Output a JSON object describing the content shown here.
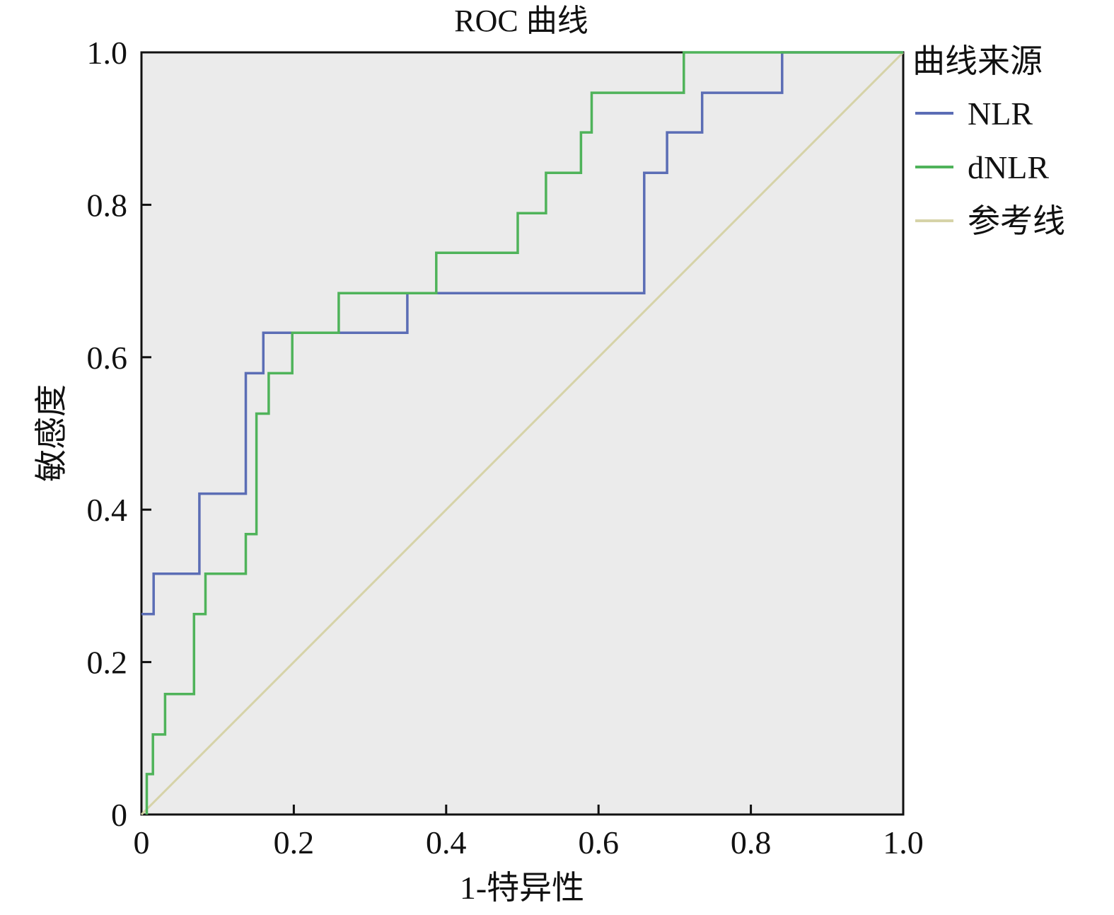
{
  "chart_data": {
    "type": "line",
    "title": "ROC 曲线",
    "xlabel": "1-特异性",
    "ylabel": "敏感度",
    "xlim": [
      0,
      1
    ],
    "ylim": [
      0,
      1
    ],
    "x_ticks": [
      "0",
      "0.2",
      "0.4",
      "0.6",
      "0.8",
      "1.0"
    ],
    "y_ticks": [
      "0",
      "0.2",
      "0.4",
      "0.6",
      "0.8",
      "1.0"
    ],
    "grid": false,
    "legend": {
      "title": "曲线来源",
      "placement": "right"
    },
    "series": [
      {
        "name": "NLR",
        "color": "#5b6db5",
        "step": true,
        "points": [
          [
            0,
            0.263
          ],
          [
            0.016,
            0.263
          ],
          [
            0.016,
            0.316
          ],
          [
            0.076,
            0.316
          ],
          [
            0.076,
            0.421
          ],
          [
            0.137,
            0.421
          ],
          [
            0.137,
            0.579
          ],
          [
            0.16,
            0.579
          ],
          [
            0.16,
            0.632
          ],
          [
            0.349,
            0.632
          ],
          [
            0.349,
            0.684
          ],
          [
            0.66,
            0.684
          ],
          [
            0.66,
            0.842
          ],
          [
            0.69,
            0.842
          ],
          [
            0.69,
            0.895
          ],
          [
            0.736,
            0.895
          ],
          [
            0.736,
            0.947
          ],
          [
            0.841,
            0.947
          ],
          [
            0.841,
            1.0
          ],
          [
            1.0,
            1.0
          ]
        ]
      },
      {
        "name": "dNLR",
        "color": "#4fb35a",
        "step": true,
        "points": [
          [
            0.007,
            0
          ],
          [
            0.007,
            0.053
          ],
          [
            0.015,
            0.053
          ],
          [
            0.015,
            0.105
          ],
          [
            0.031,
            0.105
          ],
          [
            0.031,
            0.158
          ],
          [
            0.069,
            0.158
          ],
          [
            0.069,
            0.263
          ],
          [
            0.084,
            0.263
          ],
          [
            0.084,
            0.316
          ],
          [
            0.137,
            0.316
          ],
          [
            0.137,
            0.368
          ],
          [
            0.151,
            0.368
          ],
          [
            0.151,
            0.526
          ],
          [
            0.167,
            0.526
          ],
          [
            0.167,
            0.579
          ],
          [
            0.198,
            0.579
          ],
          [
            0.198,
            0.632
          ],
          [
            0.259,
            0.632
          ],
          [
            0.259,
            0.684
          ],
          [
            0.387,
            0.684
          ],
          [
            0.387,
            0.737
          ],
          [
            0.494,
            0.737
          ],
          [
            0.494,
            0.789
          ],
          [
            0.531,
            0.789
          ],
          [
            0.531,
            0.842
          ],
          [
            0.577,
            0.842
          ],
          [
            0.577,
            0.895
          ],
          [
            0.591,
            0.895
          ],
          [
            0.591,
            0.947
          ],
          [
            0.712,
            0.947
          ],
          [
            0.712,
            1.0
          ],
          [
            1.0,
            1.0
          ]
        ]
      },
      {
        "name": "参考线",
        "color": "#d6d3a8",
        "step": false,
        "points": [
          [
            0,
            0
          ],
          [
            1,
            1
          ]
        ]
      }
    ]
  }
}
